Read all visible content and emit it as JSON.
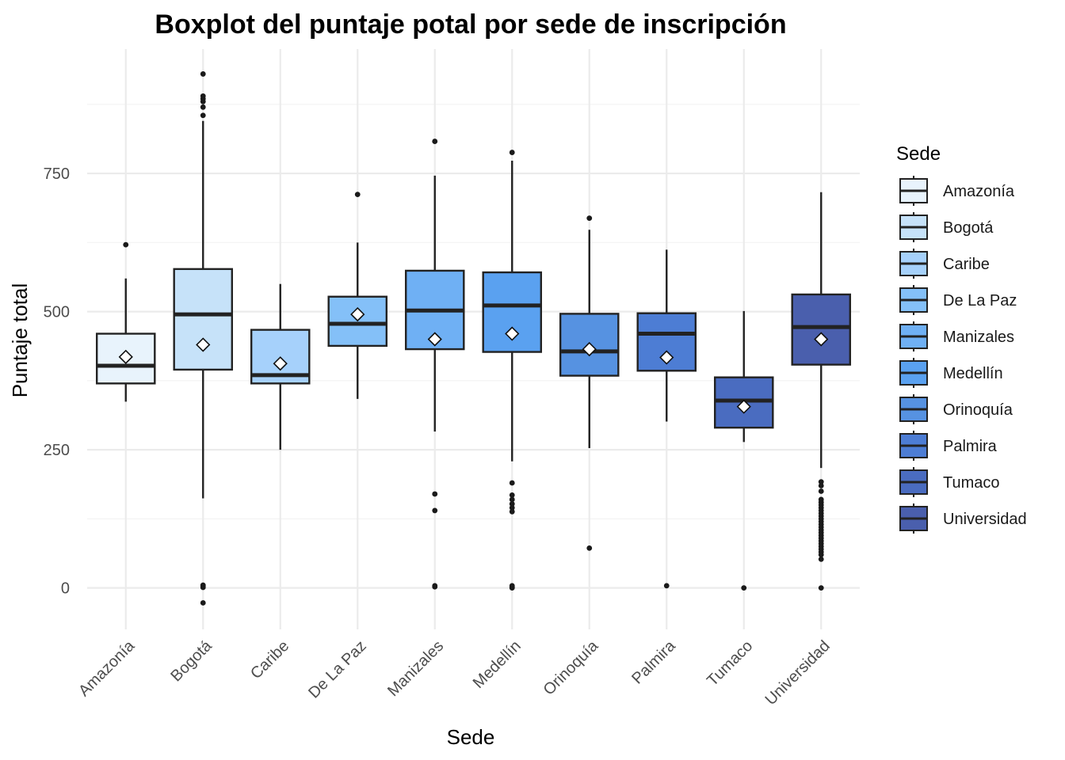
{
  "chart_data": {
    "type": "boxplot",
    "title": "Boxplot del puntaje potal por sede de inscripción",
    "xlabel": "Sede",
    "ylabel": "Puntaje total",
    "ylim": [
      -75,
      975
    ],
    "yticks": [
      0,
      250,
      500,
      750
    ],
    "grid": true,
    "legend": {
      "title": "Sede",
      "placement": "right"
    },
    "categories": [
      "Amazonía",
      "Bogotá",
      "Caribe",
      "De La Paz",
      "Manizales",
      "Medellín",
      "Orinoquía",
      "Palmira",
      "Tumaco",
      "Universidad"
    ],
    "colors": [
      "#e8f3fc",
      "#c6e2f9",
      "#a6d1fb",
      "#84c0f8",
      "#6fb0f4",
      "#5aa1f0",
      "#5692e1",
      "#4d7dd4",
      "#4a6cc0",
      "#4a5fad"
    ],
    "series": [
      {
        "q1": 370,
        "median": 402,
        "q3": 460,
        "whisker_low": 337,
        "whisker_high": 560,
        "mean": 418,
        "outliers": [
          621
        ]
      },
      {
        "q1": 395,
        "median": 495,
        "q3": 577,
        "whisker_low": 162,
        "whisker_high": 845,
        "mean": 440,
        "outliers": [
          930,
          890,
          885,
          880,
          870,
          855,
          5,
          3,
          1,
          -27
        ]
      },
      {
        "q1": 370,
        "median": 385,
        "q3": 467,
        "whisker_low": 250,
        "whisker_high": 550,
        "mean": 406,
        "outliers": []
      },
      {
        "q1": 438,
        "median": 478,
        "q3": 527,
        "whisker_low": 342,
        "whisker_high": 625,
        "mean": 495,
        "outliers": [
          712
        ]
      },
      {
        "q1": 432,
        "median": 502,
        "q3": 574,
        "whisker_low": 283,
        "whisker_high": 746,
        "mean": 450,
        "outliers": [
          808,
          170,
          140,
          4,
          2
        ]
      },
      {
        "q1": 427,
        "median": 511,
        "q3": 571,
        "whisker_low": 229,
        "whisker_high": 773,
        "mean": 460,
        "outliers": [
          788,
          190,
          168,
          160,
          152,
          145,
          138,
          4,
          2,
          0
        ]
      },
      {
        "q1": 384,
        "median": 428,
        "q3": 496,
        "whisker_low": 253,
        "whisker_high": 648,
        "mean": 432,
        "outliers": [
          669,
          72
        ]
      },
      {
        "q1": 393,
        "median": 460,
        "q3": 497,
        "whisker_low": 301,
        "whisker_high": 612,
        "mean": 417,
        "outliers": [
          4
        ]
      },
      {
        "q1": 290,
        "median": 339,
        "q3": 381,
        "whisker_low": 264,
        "whisker_high": 501,
        "mean": 328,
        "outliers": [
          0
        ]
      },
      {
        "q1": 404,
        "median": 472,
        "q3": 531,
        "whisker_low": 217,
        "whisker_high": 716,
        "mean": 450,
        "outliers": [
          192,
          185,
          175,
          160,
          155,
          150,
          145,
          140,
          135,
          130,
          125,
          120,
          115,
          110,
          105,
          100,
          95,
          90,
          85,
          80,
          75,
          70,
          65,
          60,
          52,
          0
        ]
      }
    ]
  }
}
